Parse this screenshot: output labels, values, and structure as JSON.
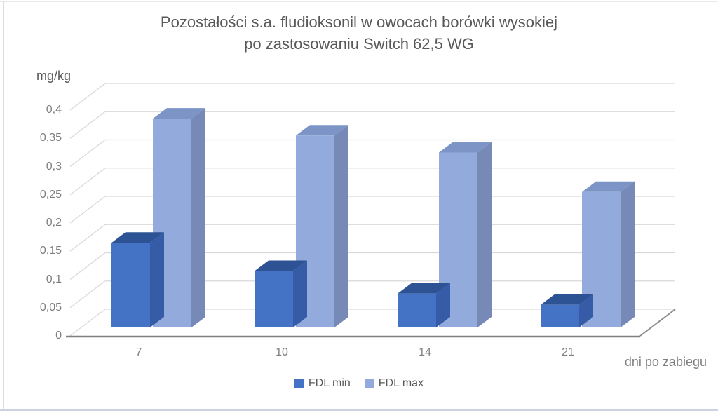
{
  "title": {
    "line1": "Pozostałości s.a. fludioksonil w owocach borówki wysokiej",
    "line2": "po zastosowaniu Switch 62,5 WG"
  },
  "axis": {
    "y_unit_label": "mg/kg",
    "x_axis_label": "dni po zabiegu",
    "y_tick_labels": [
      "0",
      "0,05",
      "0,1",
      "0,15",
      "0,2",
      "0,25",
      "0,3",
      "0,35",
      "0,4"
    ],
    "y_tick_values": [
      0,
      0.05,
      0.1,
      0.15,
      0.2,
      0.25,
      0.3,
      0.35,
      0.4
    ]
  },
  "legend": {
    "items": [
      {
        "label": "FDL min",
        "color": "#4472C4"
      },
      {
        "label": "FDL max",
        "color": "#92ABDC"
      }
    ]
  },
  "colors": {
    "gridline": "#D9D9D9",
    "axis_front_line": "#808080",
    "floor_edge": "#8C8C8C",
    "title_text": "#595959",
    "tick_text": "#7F7F7F",
    "fdl_min": {
      "front": "#4472C4",
      "top": "#2E5395",
      "side": "#365CA8"
    },
    "fdl_max": {
      "front": "#92ABDC",
      "top": "#7D94C7",
      "side": "#7689B7"
    }
  },
  "chart_data": {
    "type": "bar",
    "style": "3d-clustered-column",
    "title": "Pozostałości s.a. fludioksonil w owocach borówki wysokiej po zastosowaniu Switch 62,5 WG",
    "categories": [
      "7",
      "10",
      "14",
      "21"
    ],
    "series": [
      {
        "name": "FDL min",
        "values": [
          0.15,
          0.1,
          0.06,
          0.04
        ]
      },
      {
        "name": "FDL max",
        "values": [
          0.37,
          0.34,
          0.31,
          0.24
        ]
      }
    ],
    "xlabel": "dni po zabiegu",
    "ylabel": "mg/kg",
    "ylim": [
      0,
      0.4
    ],
    "ytick_step": 0.05,
    "grid": true,
    "legend_position": "bottom"
  }
}
